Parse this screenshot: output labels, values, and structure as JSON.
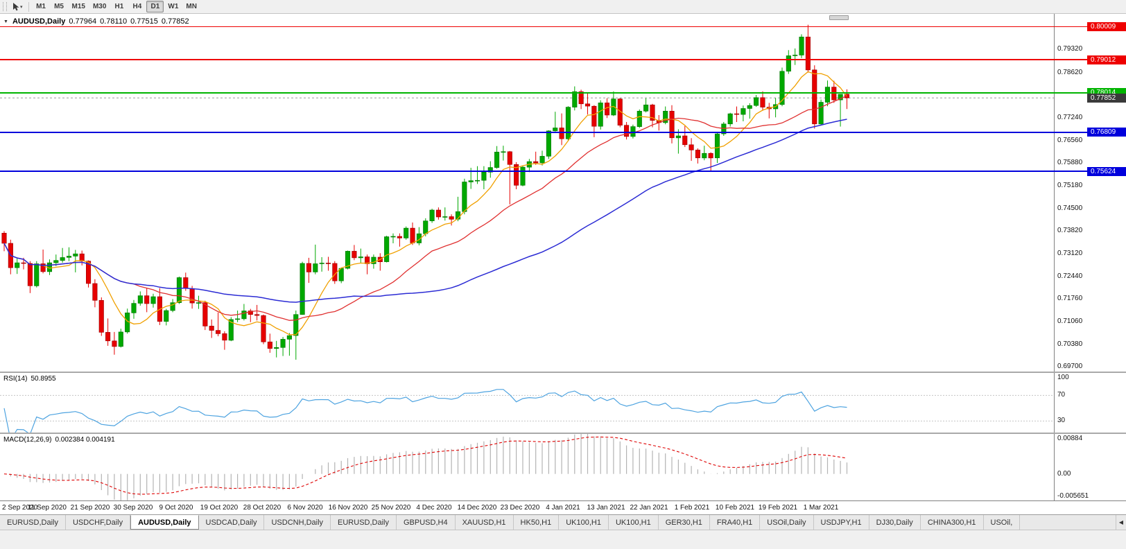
{
  "toolbar": {
    "timeframes": [
      "M1",
      "M5",
      "M15",
      "M30",
      "H1",
      "H4",
      "D1",
      "W1",
      "MN"
    ],
    "active_timeframe": "D1",
    "pointer_tool_caret": "▾"
  },
  "chart_title": {
    "collapse_glyph": "▼",
    "symbol": "AUDUSD,Daily",
    "open": "0.77964",
    "high": "0.78110",
    "low": "0.77515",
    "close": "0.77852"
  },
  "tabs": {
    "overflow_arrow": "◀",
    "items": [
      {
        "label": "EURUSD,Daily",
        "active": false
      },
      {
        "label": "USDCHF,Daily",
        "active": false
      },
      {
        "label": "AUDUSD,Daily",
        "active": true
      },
      {
        "label": "USDCAD,Daily",
        "active": false
      },
      {
        "label": "USDCNH,Daily",
        "active": false
      },
      {
        "label": "EURUSD,Daily",
        "active": false
      },
      {
        "label": "GBPUSD,H4",
        "active": false
      },
      {
        "label": "XAUUSD,H1",
        "active": false
      },
      {
        "label": "HK50,H1",
        "active": false
      },
      {
        "label": "UK100,H1",
        "active": false
      },
      {
        "label": "UK100,H1",
        "active": false
      },
      {
        "label": "GER30,H1",
        "active": false
      },
      {
        "label": "FRA40,H1",
        "active": false
      },
      {
        "label": "USOil,Daily",
        "active": false
      },
      {
        "label": "USDJPY,H1",
        "active": false
      },
      {
        "label": "DJ30,Daily",
        "active": false
      },
      {
        "label": "CHINA300,H1",
        "active": false
      },
      {
        "label": "USOil,",
        "active": false
      }
    ]
  },
  "chart_data": {
    "type": "candlestick",
    "symbol": "AUDUSD",
    "timeframe": "Daily",
    "price_range": [
      0.6955,
      0.804
    ],
    "up_color": "#00A800",
    "up_border": "#007500",
    "down_color": "#E60000",
    "down_border": "#990000",
    "y_ticks": [
      "0.79320",
      "0.78620",
      "0.77240",
      "0.76560",
      "0.75880",
      "0.75180",
      "0.74500",
      "0.73820",
      "0.73120",
      "0.72440",
      "0.71760",
      "0.71060",
      "0.70380",
      "0.69700"
    ],
    "x_labels": [
      "2 Sep 2020",
      "11 Sep 2020",
      "21 Sep 2020",
      "30 Sep 2020",
      "9 Oct 2020",
      "19 Oct 2020",
      "28 Oct 2020",
      "6 Nov 2020",
      "16 Nov 2020",
      "25 Nov 2020",
      "4 Dec 2020",
      "14 Dec 2020",
      "23 Dec 2020",
      "4 Jan 2021",
      "13 Jan 2021",
      "22 Jan 2021",
      "1 Feb 2021",
      "10 Feb 2021",
      "19 Feb 2021",
      "1 Mar 2021"
    ],
    "moving_averages": [
      {
        "name": "fast-ma",
        "period": 7,
        "color": "#F0A000",
        "width": 1.3
      },
      {
        "name": "medium-ma",
        "period": 21,
        "color": "#E03030",
        "width": 1.3
      },
      {
        "name": "slow-ma",
        "period": 55,
        "color": "#2B2BD4",
        "width": 1.5
      }
    ],
    "levels": [
      {
        "label": "0.80009",
        "price": 0.80009,
        "color": "#EE0000",
        "width": 1.4
      },
      {
        "label": "0.79012",
        "price": 0.79012,
        "color": "#EE0000",
        "width": 1.4
      },
      {
        "label": "0.78014",
        "price": 0.78014,
        "color": "#00B400",
        "width": 2
      },
      {
        "label": "0.76809",
        "price": 0.76809,
        "color": "#0000DC",
        "width": 2
      },
      {
        "label": "0.75624",
        "price": 0.75624,
        "color": "#0000DC",
        "width": 2
      }
    ],
    "bid": {
      "label": "0.77852",
      "price": 0.77852,
      "box_color": "#3A3A3A",
      "line_color": "#9B9B9B"
    },
    "rsi": {
      "label": "RSI(14)",
      "value": "50.8955",
      "period": 14,
      "line_color": "#4DA3E0",
      "levels": [
        70,
        30
      ],
      "range": [
        12,
        105
      ],
      "scale_labels": [
        {
          "text": "100",
          "value": 100
        },
        {
          "text": "70",
          "value": 70
        },
        {
          "text": "30",
          "value": 30
        }
      ]
    },
    "macd": {
      "label": "MACD(12,26,9)",
      "value": "0.002384 0.004191",
      "fast": 12,
      "slow": 26,
      "signal": 9,
      "histogram_color": "#B3B3B3",
      "signal_color": "#DE0000",
      "range": [
        -0.005651,
        0.00884
      ],
      "scale_labels": [
        {
          "text": "0.00884",
          "value": 0.00884
        },
        {
          "text": "0.00",
          "value": 0
        },
        {
          "text": "-0.005651",
          "value": -0.005651
        }
      ]
    },
    "candles": [
      [
        0.7375,
        0.7381,
        0.732,
        0.7344
      ],
      [
        0.7344,
        0.7355,
        0.725,
        0.727
      ],
      [
        0.727,
        0.73,
        0.7251,
        0.7285
      ],
      [
        0.7285,
        0.73,
        0.7265,
        0.7283
      ],
      [
        0.7283,
        0.729,
        0.7193,
        0.7215
      ],
      [
        0.7215,
        0.729,
        0.721,
        0.7282
      ],
      [
        0.7282,
        0.7325,
        0.7253,
        0.7258
      ],
      [
        0.7258,
        0.7295,
        0.7248,
        0.7285
      ],
      [
        0.7285,
        0.731,
        0.7275,
        0.7292
      ],
      [
        0.7292,
        0.733,
        0.7285,
        0.7301
      ],
      [
        0.7301,
        0.7332,
        0.729,
        0.7305
      ],
      [
        0.7305,
        0.7324,
        0.7256,
        0.7312
      ],
      [
        0.7312,
        0.7322,
        0.7277,
        0.729
      ],
      [
        0.729,
        0.7292,
        0.721,
        0.7222
      ],
      [
        0.7222,
        0.7235,
        0.715,
        0.7171
      ],
      [
        0.7171,
        0.718,
        0.7063,
        0.7074
      ],
      [
        0.7074,
        0.7116,
        0.7033,
        0.7048
      ],
      [
        0.7048,
        0.7075,
        0.7006,
        0.7031
      ],
      [
        0.7031,
        0.7085,
        0.7028,
        0.7075
      ],
      [
        0.7075,
        0.7146,
        0.707,
        0.7133
      ],
      [
        0.7133,
        0.7172,
        0.7115,
        0.7162
      ],
      [
        0.7162,
        0.7198,
        0.7155,
        0.7185
      ],
      [
        0.7185,
        0.7209,
        0.7135,
        0.7161
      ],
      [
        0.7161,
        0.7191,
        0.7149,
        0.7182
      ],
      [
        0.7182,
        0.7208,
        0.7096,
        0.7107
      ],
      [
        0.7107,
        0.7145,
        0.7095,
        0.714
      ],
      [
        0.714,
        0.7175,
        0.7135,
        0.7164
      ],
      [
        0.7164,
        0.7243,
        0.716,
        0.724
      ],
      [
        0.724,
        0.7255,
        0.72,
        0.7207
      ],
      [
        0.7207,
        0.7215,
        0.7146,
        0.7163
      ],
      [
        0.7163,
        0.7185,
        0.7145,
        0.7164
      ],
      [
        0.7164,
        0.717,
        0.7081,
        0.7093
      ],
      [
        0.7093,
        0.7113,
        0.7057,
        0.708
      ],
      [
        0.708,
        0.7134,
        0.7062,
        0.707
      ],
      [
        0.707,
        0.7077,
        0.7021,
        0.705
      ],
      [
        0.705,
        0.712,
        0.7047,
        0.7113
      ],
      [
        0.7113,
        0.714,
        0.7105,
        0.7115
      ],
      [
        0.7115,
        0.716,
        0.711,
        0.7139
      ],
      [
        0.7139,
        0.7145,
        0.7105,
        0.7128
      ],
      [
        0.7128,
        0.7157,
        0.711,
        0.7125
      ],
      [
        0.7125,
        0.7128,
        0.7038,
        0.7045
      ],
      [
        0.7045,
        0.707,
        0.7012,
        0.7025
      ],
      [
        0.7025,
        0.7048,
        0.6998,
        0.7028
      ],
      [
        0.7028,
        0.706,
        0.7002,
        0.7053
      ],
      [
        0.7053,
        0.7072,
        0.7003,
        0.7064
      ],
      [
        0.7064,
        0.714,
        0.6991,
        0.7128
      ],
      [
        0.7128,
        0.7288,
        0.7127,
        0.7283
      ],
      [
        0.7283,
        0.73,
        0.7224,
        0.7257
      ],
      [
        0.7257,
        0.734,
        0.725,
        0.7282
      ],
      [
        0.7282,
        0.7302,
        0.7258,
        0.7284
      ],
      [
        0.7284,
        0.7303,
        0.7261,
        0.7283
      ],
      [
        0.7283,
        0.729,
        0.7221,
        0.723
      ],
      [
        0.723,
        0.727,
        0.7223,
        0.7268
      ],
      [
        0.7268,
        0.7322,
        0.7265,
        0.732
      ],
      [
        0.732,
        0.7339,
        0.7293,
        0.73
      ],
      [
        0.73,
        0.7328,
        0.7283,
        0.7303
      ],
      [
        0.7303,
        0.731,
        0.725,
        0.7282
      ],
      [
        0.7282,
        0.731,
        0.7267,
        0.7302
      ],
      [
        0.7302,
        0.7314,
        0.7261,
        0.7288
      ],
      [
        0.7288,
        0.7367,
        0.7286,
        0.7364
      ],
      [
        0.7364,
        0.7374,
        0.7344,
        0.7365
      ],
      [
        0.7365,
        0.7374,
        0.7334,
        0.736
      ],
      [
        0.736,
        0.7395,
        0.7355,
        0.739
      ],
      [
        0.739,
        0.7407,
        0.7339,
        0.7345
      ],
      [
        0.7345,
        0.7393,
        0.7338,
        0.7373
      ],
      [
        0.7373,
        0.742,
        0.7365,
        0.7412
      ],
      [
        0.7412,
        0.7449,
        0.7406,
        0.7445
      ],
      [
        0.7445,
        0.7453,
        0.7416,
        0.7424
      ],
      [
        0.7424,
        0.7453,
        0.7413,
        0.7425
      ],
      [
        0.7425,
        0.7432,
        0.7398,
        0.7417
      ],
      [
        0.7417,
        0.7485,
        0.7411,
        0.744
      ],
      [
        0.744,
        0.754,
        0.7432,
        0.753
      ],
      [
        0.753,
        0.7573,
        0.7509,
        0.7534
      ],
      [
        0.7534,
        0.7578,
        0.7524,
        0.7535
      ],
      [
        0.7535,
        0.7578,
        0.7508,
        0.756
      ],
      [
        0.756,
        0.7593,
        0.7543,
        0.7574
      ],
      [
        0.7574,
        0.7639,
        0.757,
        0.7621
      ],
      [
        0.7621,
        0.764,
        0.7595,
        0.7622
      ],
      [
        0.7622,
        0.7624,
        0.7462,
        0.7583
      ],
      [
        0.7583,
        0.759,
        0.7508,
        0.752
      ],
      [
        0.752,
        0.758,
        0.7517,
        0.7575
      ],
      [
        0.7575,
        0.76,
        0.756,
        0.7592
      ],
      [
        0.7592,
        0.7622,
        0.7582,
        0.7588
      ],
      [
        0.7588,
        0.7625,
        0.758,
        0.7608
      ],
      [
        0.7608,
        0.7687,
        0.76,
        0.7685
      ],
      [
        0.7685,
        0.7743,
        0.7683,
        0.7694
      ],
      [
        0.7694,
        0.7738,
        0.7642,
        0.7661
      ],
      [
        0.7661,
        0.776,
        0.7654,
        0.7757
      ],
      [
        0.7757,
        0.782,
        0.7747,
        0.7804
      ],
      [
        0.7804,
        0.781,
        0.7751,
        0.7767
      ],
      [
        0.7767,
        0.78,
        0.7735,
        0.776
      ],
      [
        0.776,
        0.7763,
        0.7666,
        0.7699
      ],
      [
        0.7699,
        0.7778,
        0.7689,
        0.777
      ],
      [
        0.777,
        0.7784,
        0.7724,
        0.7733
      ],
      [
        0.7733,
        0.7805,
        0.773,
        0.7782
      ],
      [
        0.7782,
        0.7785,
        0.7696,
        0.7702
      ],
      [
        0.7702,
        0.7712,
        0.7659,
        0.7668
      ],
      [
        0.7668,
        0.7704,
        0.7662,
        0.7698
      ],
      [
        0.7698,
        0.775,
        0.7694,
        0.7745
      ],
      [
        0.7745,
        0.7784,
        0.7741,
        0.7764
      ],
      [
        0.7764,
        0.7767,
        0.7696,
        0.7717
      ],
      [
        0.7717,
        0.7733,
        0.7686,
        0.771
      ],
      [
        0.771,
        0.7759,
        0.7705,
        0.7745
      ],
      [
        0.7745,
        0.7763,
        0.7647,
        0.7664
      ],
      [
        0.7664,
        0.769,
        0.7616,
        0.767
      ],
      [
        0.767,
        0.77,
        0.7636,
        0.7643
      ],
      [
        0.7643,
        0.7663,
        0.7594,
        0.7627
      ],
      [
        0.7627,
        0.7632,
        0.7586,
        0.7603
      ],
      [
        0.7603,
        0.764,
        0.7596,
        0.7617
      ],
      [
        0.7617,
        0.762,
        0.7564,
        0.7603
      ],
      [
        0.7603,
        0.7679,
        0.7588,
        0.7676
      ],
      [
        0.7676,
        0.7712,
        0.767,
        0.7706
      ],
      [
        0.7706,
        0.774,
        0.7698,
        0.7737
      ],
      [
        0.7737,
        0.7759,
        0.7712,
        0.7735
      ],
      [
        0.7735,
        0.7762,
        0.7714,
        0.7753
      ],
      [
        0.7753,
        0.7769,
        0.7722,
        0.7762
      ],
      [
        0.7762,
        0.7794,
        0.7758,
        0.7786
      ],
      [
        0.7786,
        0.7805,
        0.7746,
        0.7757
      ],
      [
        0.7757,
        0.777,
        0.7723,
        0.7752
      ],
      [
        0.7752,
        0.7785,
        0.7726,
        0.7765
      ],
      [
        0.7765,
        0.7877,
        0.776,
        0.7866
      ],
      [
        0.7866,
        0.793,
        0.7858,
        0.7913
      ],
      [
        0.7913,
        0.7935,
        0.7885,
        0.7915
      ],
      [
        0.7915,
        0.7978,
        0.7906,
        0.797
      ],
      [
        0.797,
        0.8007,
        0.7862,
        0.787
      ],
      [
        0.787,
        0.7884,
        0.7692,
        0.7706
      ],
      [
        0.7706,
        0.778,
        0.7704,
        0.7772
      ],
      [
        0.7772,
        0.7838,
        0.776,
        0.7818
      ],
      [
        0.7818,
        0.7837,
        0.777,
        0.7779
      ],
      [
        0.7779,
        0.7796,
        0.7698,
        0.7796
      ],
      [
        0.77964,
        0.7811,
        0.77515,
        0.77852
      ]
    ]
  }
}
